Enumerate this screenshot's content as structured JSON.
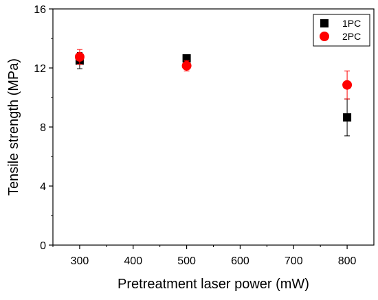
{
  "chart_data": {
    "type": "scatter",
    "xlabel": "Pretreatment laser power (mW)",
    "ylabel": "Tensile strength (MPa)",
    "xlim": [
      250,
      850
    ],
    "ylim": [
      0,
      16
    ],
    "x_ticks": [
      300,
      400,
      500,
      600,
      700,
      800
    ],
    "y_ticks": [
      0,
      4,
      8,
      12,
      16
    ],
    "grid": false,
    "legend_position": "top-right",
    "series": [
      {
        "name": "1PC",
        "marker": "square",
        "color": "#000000",
        "error_bar_color": "#000000",
        "points": [
          {
            "x": 300,
            "y": 12.5,
            "err": 0.55
          },
          {
            "x": 500,
            "y": 12.65,
            "err": 0.25
          },
          {
            "x": 800,
            "y": 8.65,
            "err": 1.25
          }
        ]
      },
      {
        "name": "2PC",
        "marker": "circle",
        "color": "#ff0000",
        "error_bar_color": "#ff0000",
        "points": [
          {
            "x": 300,
            "y": 12.75,
            "err": 0.5
          },
          {
            "x": 500,
            "y": 12.15,
            "err": 0.35
          },
          {
            "x": 800,
            "y": 10.85,
            "err": 0.95
          }
        ]
      }
    ]
  }
}
